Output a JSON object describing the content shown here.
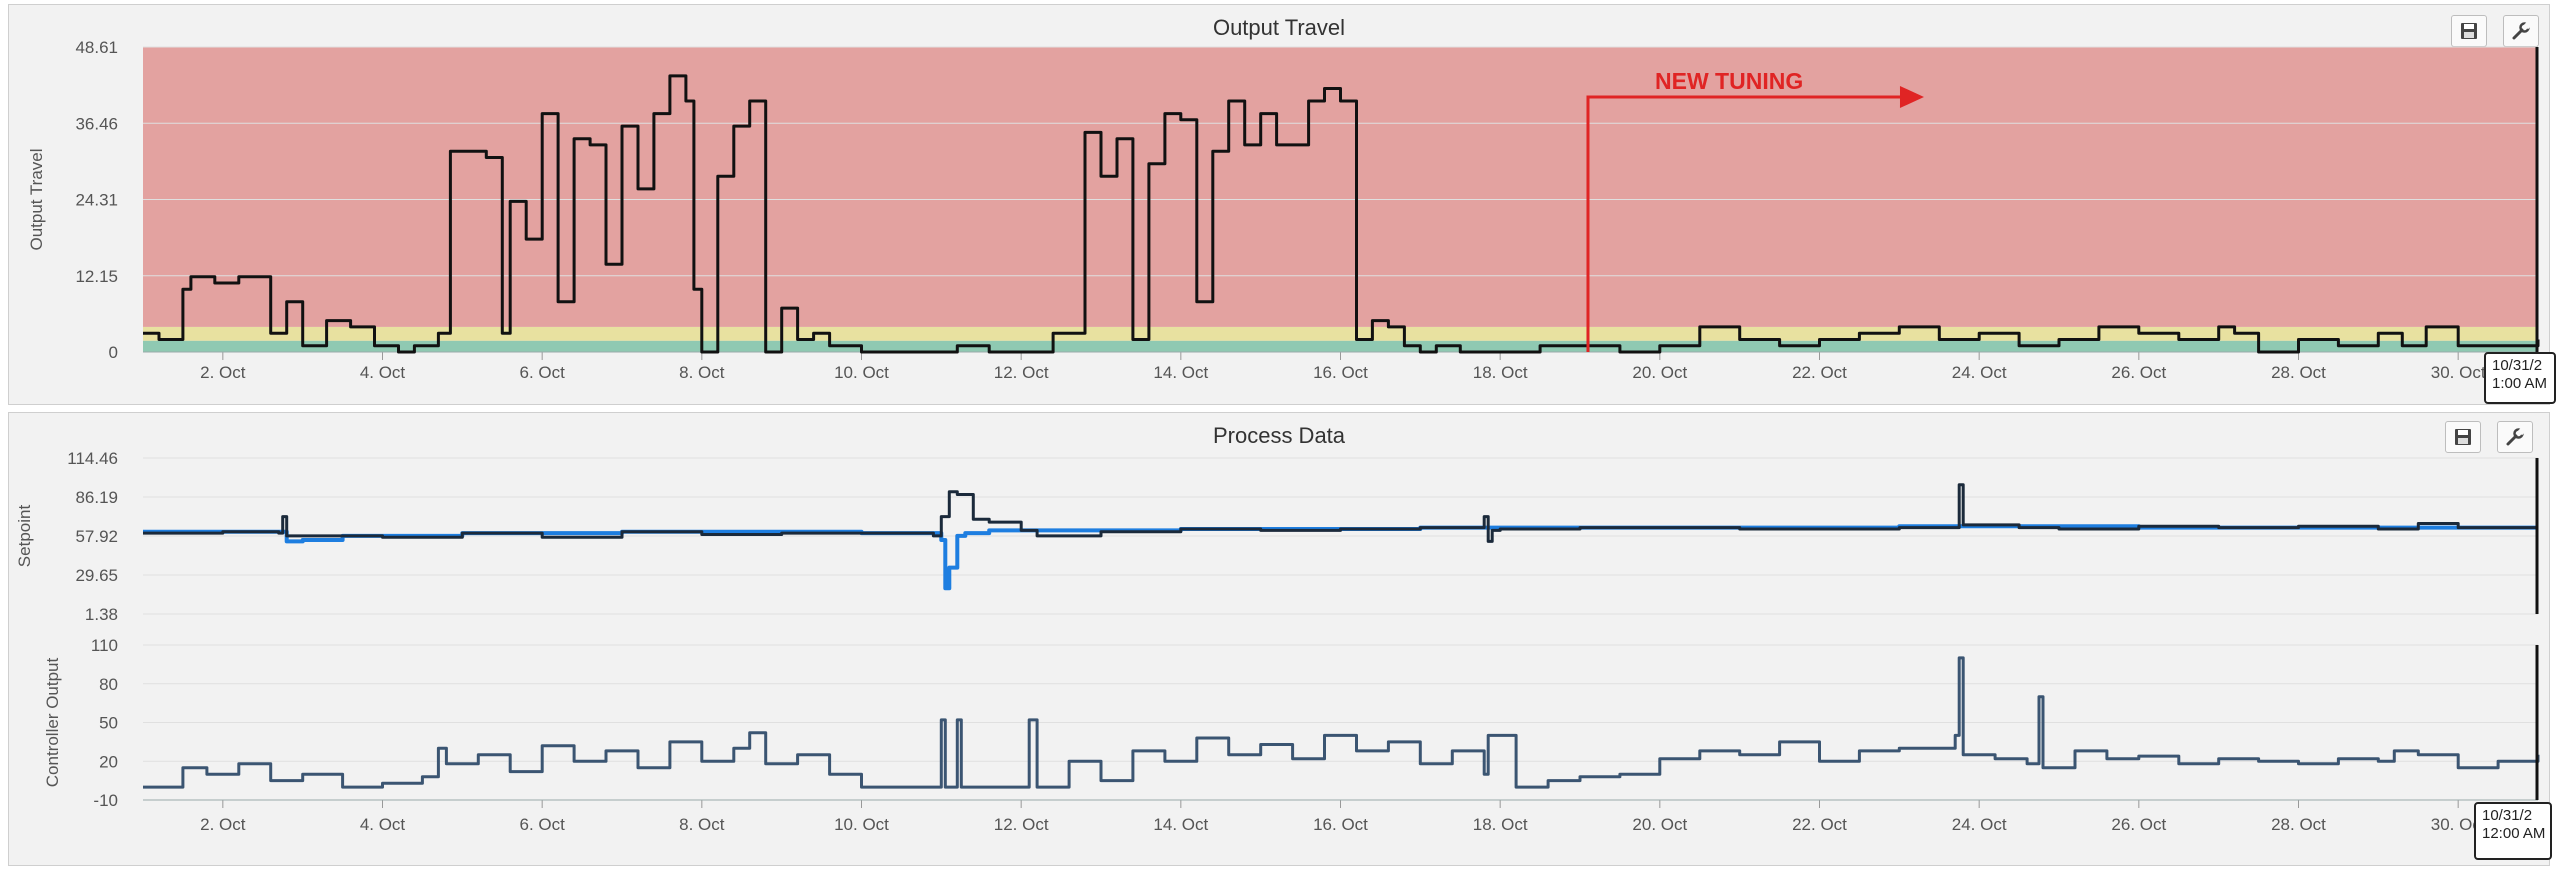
{
  "colors": {
    "band_red": "#e3a2a0",
    "band_yellow": "#e8e1a0",
    "band_green": "#8fc9b2",
    "travel_line": "#111111",
    "setpoint_line": "#1e7ee0",
    "pv_line": "#1b2a3b",
    "controller_line": "#3b5572",
    "annotation": "#e02424"
  },
  "toolbar": {
    "save_icon": "floppy-disk-icon",
    "settings_icon": "wrench-icon"
  },
  "x_tick_labels": [
    "2. Oct",
    "4. Oct",
    "6. Oct",
    "8. Oct",
    "10. Oct",
    "12. Oct",
    "14. Oct",
    "16. Oct",
    "18. Oct",
    "20. Oct",
    "22. Oct",
    "24. Oct",
    "26. Oct",
    "28. Oct",
    "30. Oct"
  ],
  "panel_top": {
    "title": "Output Travel",
    "tooltip": "10/31/2\n1:00 AM",
    "annotation": "NEW TUNING"
  },
  "panel_bottom": {
    "title": "Process Data",
    "tooltip": "10/31/2\n12:00 AM"
  },
  "chart_data": [
    {
      "type": "line",
      "title": "Output Travel",
      "ylabel": "Output Travel",
      "y_tick_labels": [
        "48.61",
        "36.46",
        "24.31",
        "12.15",
        "0"
      ],
      "ylim": [
        0,
        48.61
      ],
      "x_unit": "day of October",
      "xlim": [
        1,
        31
      ],
      "bands": [
        {
          "from": 0,
          "to": 1.8,
          "color": "green"
        },
        {
          "from": 1.8,
          "to": 4.0,
          "color": "yellow"
        },
        {
          "from": 4.0,
          "to": 48.61,
          "color": "red"
        }
      ],
      "annotation": {
        "text": "NEW TUNING",
        "x": 19.1
      },
      "series": [
        {
          "x": [
            1.0,
            1.2,
            1.5,
            1.6,
            1.9,
            2.2,
            2.6,
            2.8,
            3.0,
            3.3,
            3.6,
            3.9,
            4.2,
            4.4,
            4.7,
            4.85,
            5.0,
            5.3,
            5.5,
            5.6,
            5.8,
            6.0,
            6.2,
            6.4,
            6.6,
            6.8,
            7.0,
            7.2,
            7.4,
            7.6,
            7.8,
            7.9,
            8.0,
            8.2,
            8.4,
            8.6,
            8.8,
            9.0,
            9.2,
            9.4,
            9.6,
            10.0,
            10.4,
            10.8,
            11.2,
            11.6,
            12.0,
            12.4,
            12.8,
            13.0,
            13.2,
            13.4,
            13.6,
            13.8,
            14.0,
            14.2,
            14.4,
            14.6,
            14.8,
            15.0,
            15.2,
            15.4,
            15.6,
            15.8,
            16.0,
            16.2,
            16.4,
            16.6,
            16.8,
            17.0,
            17.2,
            17.5,
            17.8,
            18.1,
            18.5,
            19.0,
            19.5,
            20.0,
            20.5,
            21.0,
            21.5,
            22.0,
            22.5,
            23.0,
            23.5,
            24.0,
            24.5,
            25.0,
            25.5,
            26.0,
            26.5,
            27.0,
            27.2,
            27.5,
            28.0,
            28.5,
            29.0,
            29.3,
            29.6,
            30.0,
            30.5,
            31.0
          ],
          "values": [
            3,
            2,
            10,
            12,
            11,
            12,
            3,
            8,
            1,
            5,
            4,
            1,
            0,
            1,
            3,
            32,
            32,
            31,
            3,
            24,
            18,
            38,
            8,
            34,
            33,
            14,
            36,
            26,
            38,
            44,
            40,
            10,
            0,
            28,
            36,
            40,
            0,
            7,
            2,
            3,
            1,
            0,
            0,
            0,
            1,
            0,
            0,
            3,
            35,
            28,
            34,
            2,
            30,
            38,
            37,
            8,
            32,
            40,
            33,
            38,
            33,
            33,
            40,
            42,
            40,
            2,
            5,
            4,
            1,
            0,
            1,
            0,
            0,
            0,
            1,
            1,
            0,
            1,
            4,
            2,
            1,
            2,
            3,
            4,
            2,
            3,
            1,
            2,
            4,
            3,
            2,
            4,
            3,
            0,
            2,
            1,
            3,
            1,
            4,
            1,
            1,
            2
          ]
        }
      ]
    },
    {
      "type": "line",
      "title": "Process Data",
      "ylabel": "Setpoint",
      "y_tick_labels": [
        "114.46",
        "86.19",
        "57.92",
        "29.65",
        "1.38"
      ],
      "ylim": [
        1.38,
        114.46
      ],
      "x_unit": "day of October",
      "xlim": [
        1,
        31
      ],
      "series": [
        {
          "x": [
            1.0,
            2.0,
            2.7,
            2.8,
            3.0,
            3.5,
            4.0,
            5.0,
            6.0,
            7.0,
            8.0,
            9.0,
            10.0,
            10.9,
            11.0,
            11.05,
            11.1,
            11.2,
            11.3,
            11.6,
            12.0,
            13.0,
            14.0,
            15.0,
            16.0,
            17.0,
            18.0,
            19.0,
            20.0,
            21.0,
            22.0,
            23.0,
            24.0,
            25.0,
            26.0,
            27.0,
            28.0,
            29.0,
            30.0,
            31.0
          ],
          "values": [
            61,
            61,
            61,
            54,
            55,
            58,
            58,
            60,
            60,
            61,
            61,
            61,
            60,
            60,
            55,
            20,
            35,
            58,
            60,
            62,
            62,
            62,
            63,
            63,
            63,
            64,
            64,
            64,
            64,
            64,
            64,
            65,
            65,
            65,
            64,
            64,
            64,
            64,
            64,
            64
          ]
        },
        {
          "x": [
            1.0,
            2.0,
            2.7,
            2.75,
            2.8,
            3.2,
            4.0,
            5.0,
            6.0,
            7.0,
            8.0,
            9.0,
            10.0,
            10.9,
            11.0,
            11.1,
            11.2,
            11.4,
            11.6,
            12.0,
            12.2,
            13.0,
            14.0,
            15.0,
            16.0,
            17.0,
            17.8,
            17.85,
            17.9,
            18.0,
            19.0,
            20.0,
            21.0,
            22.0,
            23.0,
            23.7,
            23.75,
            23.8,
            24.5,
            25.0,
            26.0,
            27.0,
            28.0,
            29.0,
            29.5,
            30.0,
            31.0
          ],
          "values": [
            60,
            61,
            60,
            72,
            58,
            58,
            57,
            60,
            57,
            61,
            59,
            60,
            60,
            58,
            72,
            90,
            88,
            70,
            68,
            62,
            58,
            61,
            63,
            62,
            63,
            64,
            72,
            54,
            62,
            63,
            64,
            64,
            63,
            63,
            64,
            64,
            95,
            66,
            64,
            63,
            65,
            64,
            65,
            63,
            67,
            64,
            64
          ]
        }
      ]
    },
    {
      "type": "line",
      "ylabel": "Controller Output",
      "y_tick_labels": [
        "110",
        "80",
        "50",
        "20",
        "-10"
      ],
      "ylim": [
        -10,
        110
      ],
      "x_unit": "day of October",
      "xlim": [
        1,
        31
      ],
      "series": [
        {
          "x": [
            1.0,
            1.4,
            1.5,
            1.8,
            2.2,
            2.6,
            3.0,
            3.5,
            4.0,
            4.5,
            4.7,
            4.8,
            5.2,
            5.6,
            6.0,
            6.4,
            6.8,
            7.2,
            7.6,
            8.0,
            8.4,
            8.6,
            8.8,
            9.2,
            9.6,
            10.0,
            10.4,
            10.9,
            11.0,
            11.05,
            11.2,
            11.25,
            11.5,
            12.0,
            12.1,
            12.2,
            12.6,
            13.0,
            13.4,
            13.8,
            14.2,
            14.6,
            15.0,
            15.4,
            15.8,
            16.2,
            16.6,
            17.0,
            17.4,
            17.8,
            17.85,
            18.2,
            18.6,
            19.0,
            19.5,
            20.0,
            20.5,
            21.0,
            21.5,
            22.0,
            22.5,
            23.0,
            23.5,
            23.7,
            23.75,
            23.8,
            24.2,
            24.6,
            24.75,
            24.8,
            25.2,
            25.6,
            26.0,
            26.5,
            27.0,
            27.5,
            28.0,
            28.5,
            29.0,
            29.2,
            29.5,
            30.0,
            30.5,
            31.0
          ],
          "values": [
            0,
            0,
            15,
            10,
            18,
            5,
            10,
            0,
            3,
            8,
            30,
            18,
            25,
            12,
            32,
            20,
            28,
            15,
            35,
            20,
            30,
            42,
            18,
            25,
            10,
            0,
            0,
            0,
            52,
            0,
            52,
            0,
            0,
            0,
            52,
            0,
            20,
            5,
            28,
            20,
            38,
            25,
            33,
            22,
            40,
            28,
            35,
            18,
            28,
            10,
            40,
            0,
            5,
            8,
            10,
            22,
            28,
            25,
            35,
            20,
            28,
            30,
            30,
            40,
            100,
            25,
            22,
            18,
            70,
            15,
            28,
            22,
            24,
            18,
            22,
            20,
            18,
            22,
            20,
            28,
            25,
            15,
            20,
            25
          ]
        }
      ]
    }
  ]
}
